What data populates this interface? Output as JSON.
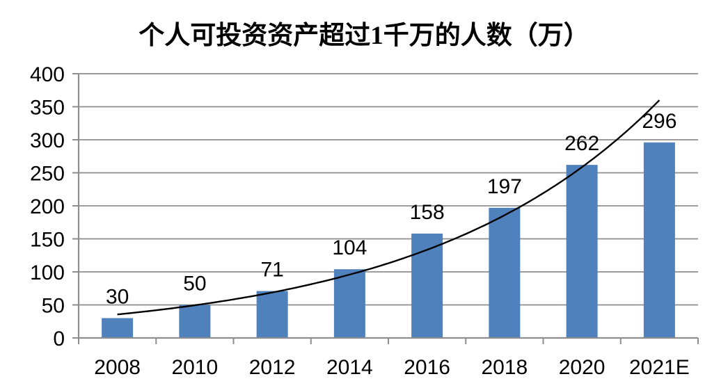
{
  "title": "个人可投资资产超过1千万的人数（万）",
  "chart_data": {
    "type": "bar",
    "title": "个人可投资资产超过1千万的人数（万）",
    "categories": [
      "2008",
      "2010",
      "2012",
      "2014",
      "2016",
      "2018",
      "2020",
      "2021E"
    ],
    "values": [
      30,
      50,
      71,
      104,
      158,
      197,
      262,
      296
    ],
    "data_labels": [
      "30",
      "50",
      "71",
      "104",
      "158",
      "197",
      "262",
      "296"
    ],
    "xlabel": "",
    "ylabel": "",
    "ylim": [
      0,
      400
    ],
    "y_ticks": [
      0,
      50,
      100,
      150,
      200,
      250,
      300,
      350,
      400
    ],
    "grid": true,
    "legend": "none",
    "trendline": {
      "type": "exponential",
      "color": "#000000"
    },
    "colors": {
      "bar": "#4F81BD",
      "gridline": "#8E8E8E",
      "axis": "#8E8E8E",
      "text": "#000000",
      "background": "#FFFFFF"
    }
  }
}
